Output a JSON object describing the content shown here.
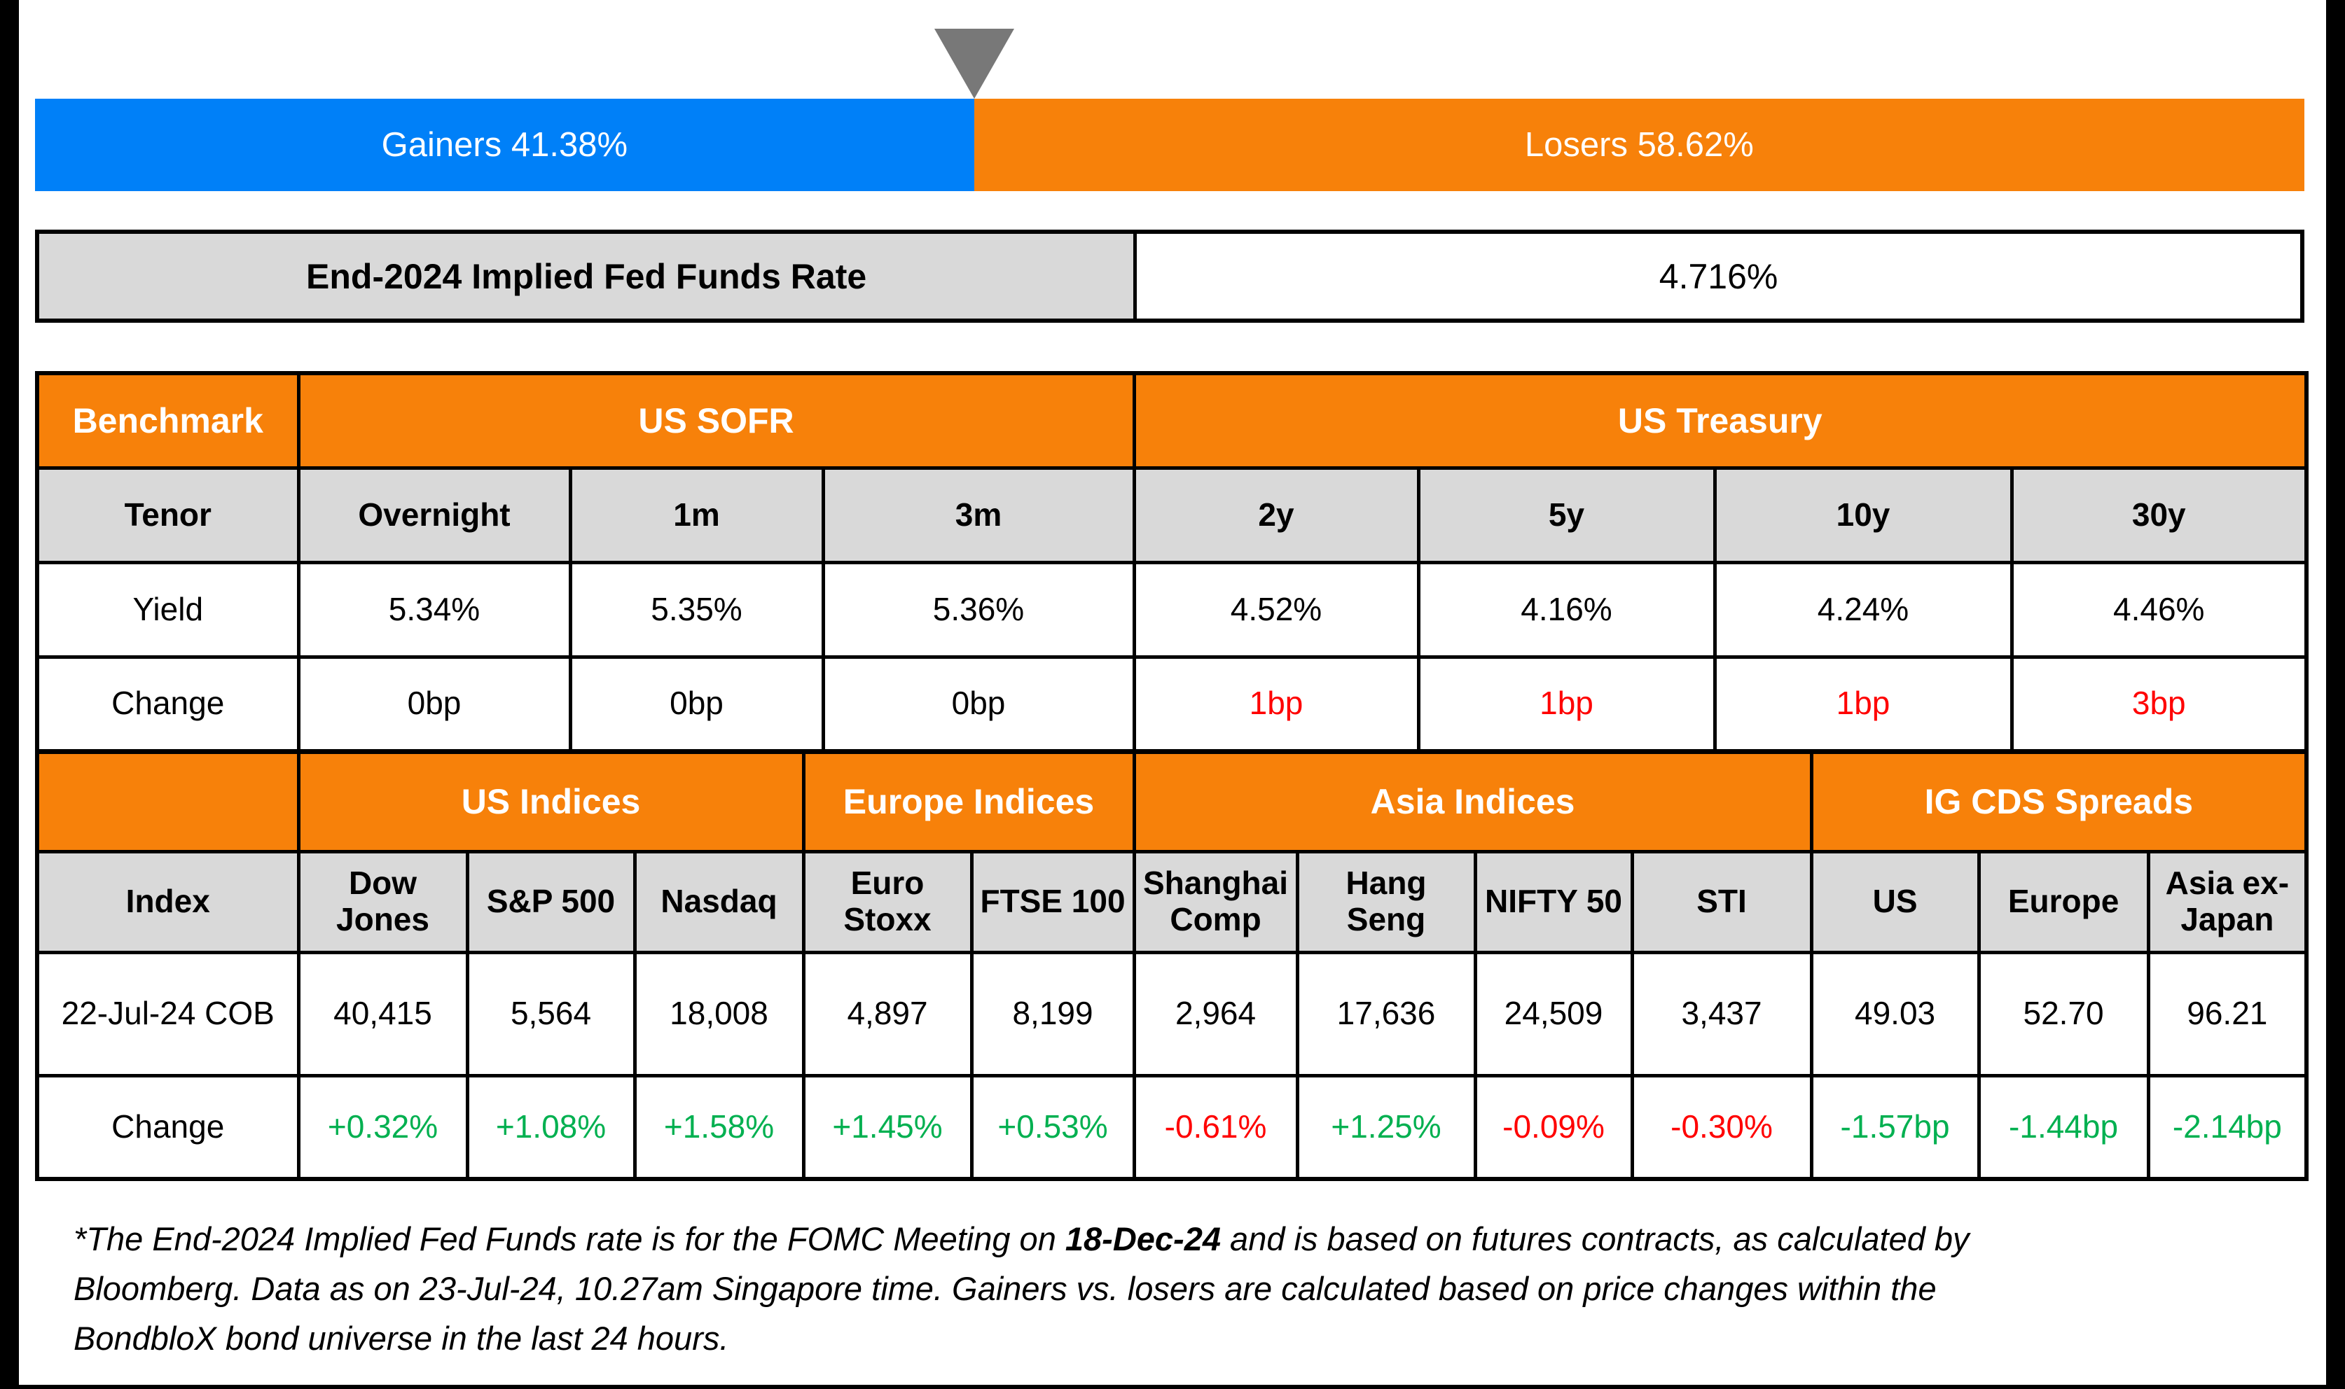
{
  "colors": {
    "gainers_blue": "#0080F8",
    "losers_orange": "#F7810A",
    "header_orange": "#F7810A",
    "cell_gray": "#D9D9D9",
    "positive_green": "#00B050",
    "negative_red": "#FF0000",
    "pointer_gray": "#787878",
    "border_black": "#000000"
  },
  "bar": {
    "gainers_label": "Gainers 41.38%",
    "losers_label": "Losers 58.62%",
    "gainers_pct": 41.38,
    "losers_pct": 58.62
  },
  "fed_funds": {
    "label": "End-2024 Implied Fed Funds Rate",
    "value": "4.716%"
  },
  "benchmark": {
    "corner": "Benchmark",
    "groups": [
      "US SOFR",
      "US Treasury"
    ],
    "row_labels": {
      "tenor": "Tenor",
      "yield": "Yield",
      "change": "Change"
    },
    "tenors": [
      "Overnight",
      "1m",
      "3m",
      "2y",
      "5y",
      "10y",
      "30y"
    ],
    "yields": [
      "5.34%",
      "5.35%",
      "5.36%",
      "4.52%",
      "4.16%",
      "4.24%",
      "4.46%"
    ],
    "changes": [
      {
        "text": "0bp",
        "color": "#000000"
      },
      {
        "text": "0bp",
        "color": "#000000"
      },
      {
        "text": "0bp",
        "color": "#000000"
      },
      {
        "text": "1bp",
        "color": "#FF0000"
      },
      {
        "text": "1bp",
        "color": "#FF0000"
      },
      {
        "text": "1bp",
        "color": "#FF0000"
      },
      {
        "text": "3bp",
        "color": "#FF0000"
      }
    ]
  },
  "indices": {
    "corner": "",
    "groups": [
      "US Indices",
      "Europe Indices",
      "Asia Indices",
      "IG CDS Spreads"
    ],
    "row_labels": {
      "index": "Index",
      "cob": "22-Jul-24 COB",
      "change": "Change"
    },
    "names": [
      "Dow Jones",
      "S&P 500",
      "Nasdaq",
      "Euro Stoxx",
      "FTSE 100",
      "Shanghai Comp",
      "Hang Seng",
      "NIFTY 50",
      "STI",
      "US",
      "Europe",
      "Asia ex-Japan"
    ],
    "cob": [
      "40,415",
      "5,564",
      "18,008",
      "4,897",
      "8,199",
      "2,964",
      "17,636",
      "24,509",
      "3,437",
      "49.03",
      "52.70",
      "96.21"
    ],
    "changes": [
      {
        "text": "+0.32%",
        "color": "#00B050"
      },
      {
        "text": "+1.08%",
        "color": "#00B050"
      },
      {
        "text": "+1.58%",
        "color": "#00B050"
      },
      {
        "text": "+1.45%",
        "color": "#00B050"
      },
      {
        "text": "+0.53%",
        "color": "#00B050"
      },
      {
        "text": "-0.61%",
        "color": "#FF0000"
      },
      {
        "text": "+1.25%",
        "color": "#00B050"
      },
      {
        "text": "-0.09%",
        "color": "#FF0000"
      },
      {
        "text": "-0.30%",
        "color": "#FF0000"
      },
      {
        "text": "-1.57bp",
        "color": "#00B050"
      },
      {
        "text": "-1.44bp",
        "color": "#00B050"
      },
      {
        "text": "-2.14bp",
        "color": "#00B050"
      }
    ]
  },
  "footnote": {
    "line1_pre": "*The End-2024 Implied Fed Funds rate is for the FOMC Meeting on ",
    "line1_bold": "18-Dec-24",
    "line1_post": " and is based on futures contracts, as calculated by",
    "line2": "Bloomberg. Data as on 23-Jul-24, 10.27am Singapore time. Gainers vs. losers are calculated based on price changes within the",
    "line3": "BondbloX bond universe in the last 24 hours."
  },
  "chart_data": [
    {
      "type": "bar",
      "title": "Gainers vs Losers (BondbloX bond universe, last 24 hours)",
      "categories": [
        "Gainers",
        "Losers"
      ],
      "values": [
        41.38,
        58.62
      ],
      "unit": "%",
      "layout": "horizontal-stacked",
      "colors": [
        "#0080F8",
        "#F7810A"
      ],
      "annotation": "Gray pointer marks the Gainers/Losers split at 41.38%"
    },
    {
      "type": "table",
      "title": "End-2024 Implied Fed Funds Rate",
      "rows": [
        [
          "End-2024 Implied Fed Funds Rate",
          "4.716%"
        ]
      ]
    },
    {
      "type": "table",
      "title": "Benchmark yields",
      "groups": {
        "US SOFR": [
          "Overnight",
          "1m",
          "3m"
        ],
        "US Treasury": [
          "2y",
          "5y",
          "10y",
          "30y"
        ]
      },
      "columns": [
        "Tenor",
        "Overnight",
        "1m",
        "3m",
        "2y",
        "5y",
        "10y",
        "30y"
      ],
      "rows": [
        [
          "Yield",
          "5.34%",
          "5.35%",
          "5.36%",
          "4.52%",
          "4.16%",
          "4.24%",
          "4.46%"
        ],
        [
          "Change",
          "0bp",
          "0bp",
          "0bp",
          "1bp",
          "1bp",
          "1bp",
          "3bp"
        ]
      ]
    },
    {
      "type": "table",
      "title": "Indices and IG CDS Spreads",
      "groups": {
        "US Indices": [
          "Dow Jones",
          "S&P 500",
          "Nasdaq"
        ],
        "Europe Indices": [
          "Euro Stoxx",
          "FTSE 100"
        ],
        "Asia Indices": [
          "Shanghai Comp",
          "Hang Seng",
          "NIFTY 50",
          "STI"
        ],
        "IG CDS Spreads": [
          "US",
          "Europe",
          "Asia ex-Japan"
        ]
      },
      "columns": [
        "Index",
        "Dow Jones",
        "S&P 500",
        "Nasdaq",
        "Euro Stoxx",
        "FTSE 100",
        "Shanghai Comp",
        "Hang Seng",
        "NIFTY 50",
        "STI",
        "US",
        "Europe",
        "Asia ex-Japan"
      ],
      "rows": [
        [
          "22-Jul-24 COB",
          "40,415",
          "5,564",
          "18,008",
          "4,897",
          "8,199",
          "2,964",
          "17,636",
          "24,509",
          "3,437",
          "49.03",
          "52.70",
          "96.21"
        ],
        [
          "Change",
          "+0.32%",
          "+1.08%",
          "+1.58%",
          "+1.45%",
          "+0.53%",
          "-0.61%",
          "+1.25%",
          "-0.09%",
          "-0.30%",
          "-1.57bp",
          "-1.44bp",
          "-2.14bp"
        ]
      ]
    }
  ]
}
